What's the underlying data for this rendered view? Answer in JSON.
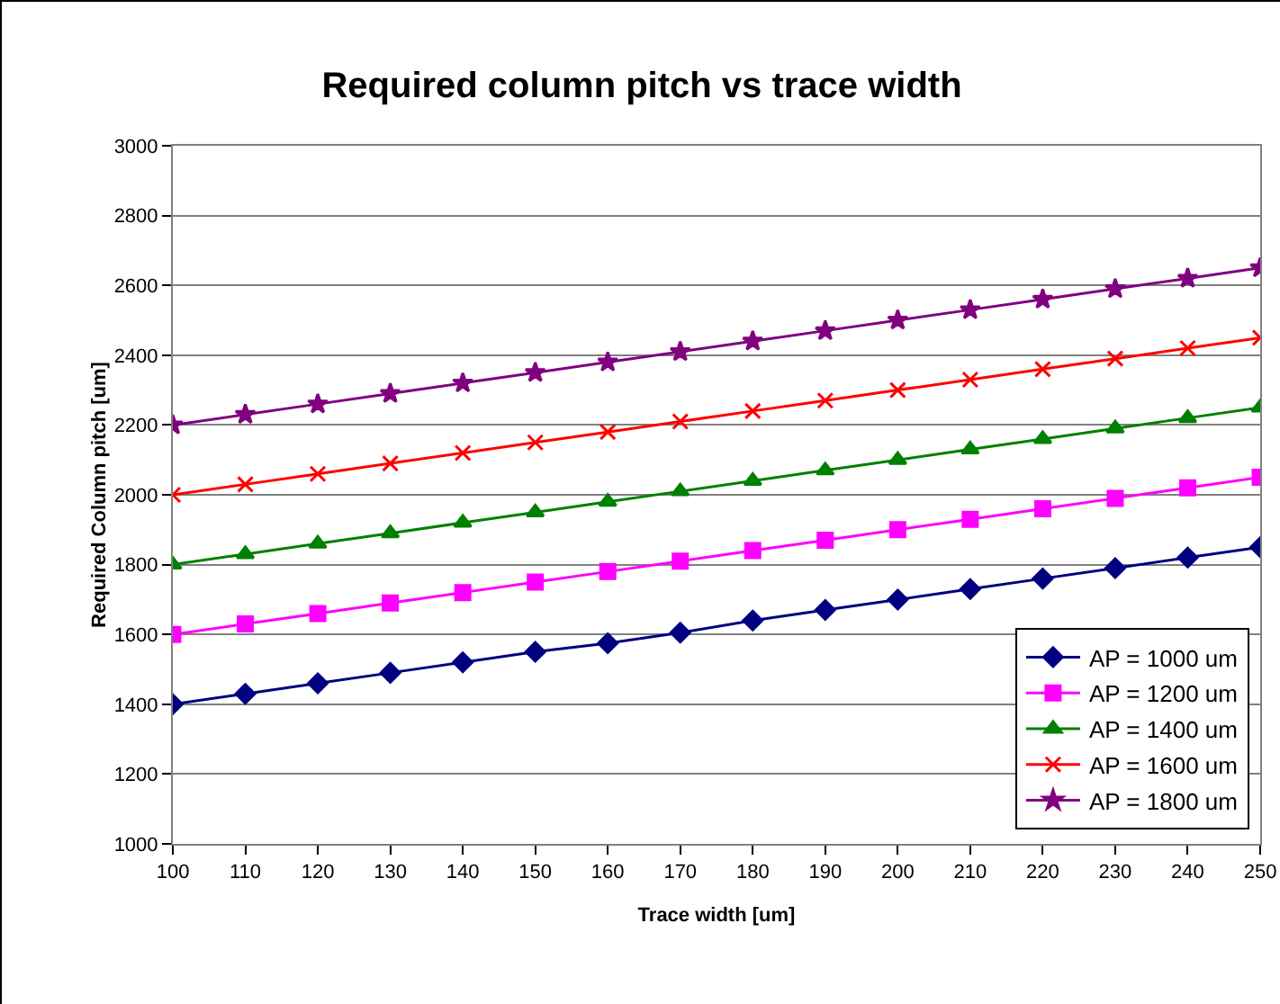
{
  "chart_data": {
    "type": "line",
    "title": "Required column pitch vs trace width",
    "xlabel": "Trace width [um]",
    "ylabel": "Required Column pitch [um]",
    "x": [
      100,
      110,
      120,
      130,
      140,
      150,
      160,
      170,
      180,
      190,
      200,
      210,
      220,
      230,
      240,
      250
    ],
    "series": [
      {
        "name": "AP = 1000 um",
        "color": "#000080",
        "marker": "diamond",
        "values": [
          1400,
          1430,
          1460,
          1490,
          1520,
          1550,
          1575,
          1605,
          1640,
          1670,
          1700,
          1730,
          1760,
          1790,
          1820,
          1850
        ]
      },
      {
        "name": "AP = 1200 um",
        "color": "#ff00ff",
        "marker": "square",
        "values": [
          1600,
          1630,
          1660,
          1690,
          1720,
          1750,
          1780,
          1810,
          1840,
          1870,
          1900,
          1930,
          1960,
          1990,
          2020,
          2050
        ]
      },
      {
        "name": "AP = 1400 um",
        "color": "#008000",
        "marker": "triangle",
        "values": [
          1800,
          1830,
          1860,
          1890,
          1920,
          1950,
          1980,
          2010,
          2040,
          2070,
          2100,
          2130,
          2160,
          2190,
          2220,
          2250
        ]
      },
      {
        "name": "AP = 1600 um",
        "color": "#ff0000",
        "marker": "cross",
        "values": [
          2000,
          2030,
          2060,
          2090,
          2120,
          2150,
          2180,
          2210,
          2240,
          2270,
          2300,
          2330,
          2360,
          2390,
          2420,
          2450
        ]
      },
      {
        "name": "AP = 1800 um",
        "color": "#800080",
        "marker": "star",
        "values": [
          2200,
          2230,
          2260,
          2290,
          2320,
          2350,
          2380,
          2410,
          2440,
          2470,
          2500,
          2530,
          2560,
          2590,
          2620,
          2650
        ]
      }
    ],
    "xlim": [
      100,
      250
    ],
    "xticks": [
      100,
      110,
      120,
      130,
      140,
      150,
      160,
      170,
      180,
      190,
      200,
      210,
      220,
      230,
      240,
      250
    ],
    "ylim": [
      1000,
      3000
    ],
    "yticks": [
      1000,
      1200,
      1400,
      1600,
      1800,
      2000,
      2200,
      2400,
      2600,
      2800,
      3000
    ],
    "grid": "y",
    "legend": "bottom right",
    "line_style": "solid"
  }
}
